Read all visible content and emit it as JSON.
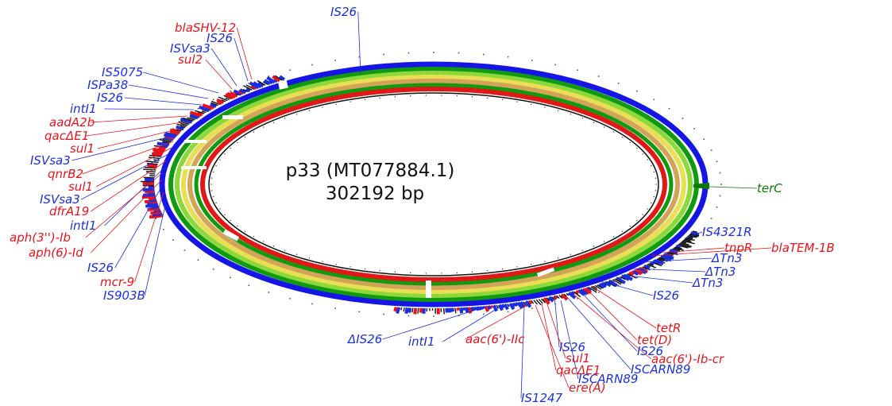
{
  "title": {
    "name": "p33 (MT077884.1)",
    "size": "302192 bp"
  },
  "colors": {
    "blue": "#1a2fe0",
    "red": "#e8141b",
    "green": "#0b7a0b",
    "ring_outer": "#1515e6",
    "ring_green": "#0f9a0f",
    "ring_lightgreen": "#8ed83c",
    "ring_yellow": "#e8df55",
    "ring_tan": "#d4a35a",
    "ring_red": "#e01818"
  },
  "labels": [
    {
      "text": "IS26",
      "color": "blue"
    },
    {
      "text": "blaSHV-12",
      "color": "red"
    },
    {
      "text": "IS26",
      "color": "blue"
    },
    {
      "text": "ISVsa3",
      "color": "blue"
    },
    {
      "text": "sul2",
      "color": "red"
    },
    {
      "text": "IS5075",
      "color": "blue"
    },
    {
      "text": "ISPa38",
      "color": "blue"
    },
    {
      "text": "IS26",
      "color": "blue"
    },
    {
      "text": "intI1",
      "color": "blue"
    },
    {
      "text": "aadA2b",
      "color": "red"
    },
    {
      "text": "qacΔE1",
      "color": "red"
    },
    {
      "text": "sul1",
      "color": "red"
    },
    {
      "text": "ISVsa3",
      "color": "blue"
    },
    {
      "text": "qnrB2",
      "color": "red"
    },
    {
      "text": "sul1",
      "color": "red"
    },
    {
      "text": "ISVsa3",
      "color": "blue"
    },
    {
      "text": "dfrA19",
      "color": "red"
    },
    {
      "text": "intI1",
      "color": "blue"
    },
    {
      "text": "aph(3'')-Ib",
      "color": "red"
    },
    {
      "text": "aph(6)-Id",
      "color": "red"
    },
    {
      "text": "IS26",
      "color": "blue"
    },
    {
      "text": "mcr-9",
      "color": "red"
    },
    {
      "text": "IS903B",
      "color": "blue"
    },
    {
      "text": "terC",
      "color": "green"
    },
    {
      "text": "IS4321R",
      "color": "blue"
    },
    {
      "text": "tnpR",
      "color": "red"
    },
    {
      "text": "blaTEM-1B",
      "color": "red"
    },
    {
      "text": "ΔTn3",
      "color": "blue"
    },
    {
      "text": "ΔTn3",
      "color": "blue"
    },
    {
      "text": "ΔTn3",
      "color": "blue"
    },
    {
      "text": "IS26",
      "color": "blue"
    },
    {
      "text": "tetR",
      "color": "red"
    },
    {
      "text": "tet(D)",
      "color": "red"
    },
    {
      "text": "IS26",
      "color": "blue"
    },
    {
      "text": "aac(6')-Ib-cr",
      "color": "red"
    },
    {
      "text": "ISCARN89",
      "color": "blue"
    },
    {
      "text": "ISCARN89",
      "color": "blue"
    },
    {
      "text": "IS26",
      "color": "blue"
    },
    {
      "text": "ΔIS26",
      "color": "blue"
    },
    {
      "text": "intI1",
      "color": "blue"
    },
    {
      "text": "aac(6')-IIc",
      "color": "red"
    },
    {
      "text": "sul1",
      "color": "red"
    },
    {
      "text": "qacΔE1",
      "color": "red"
    },
    {
      "text": "ere(A)",
      "color": "red"
    },
    {
      "text": "IS1247",
      "color": "blue"
    }
  ]
}
